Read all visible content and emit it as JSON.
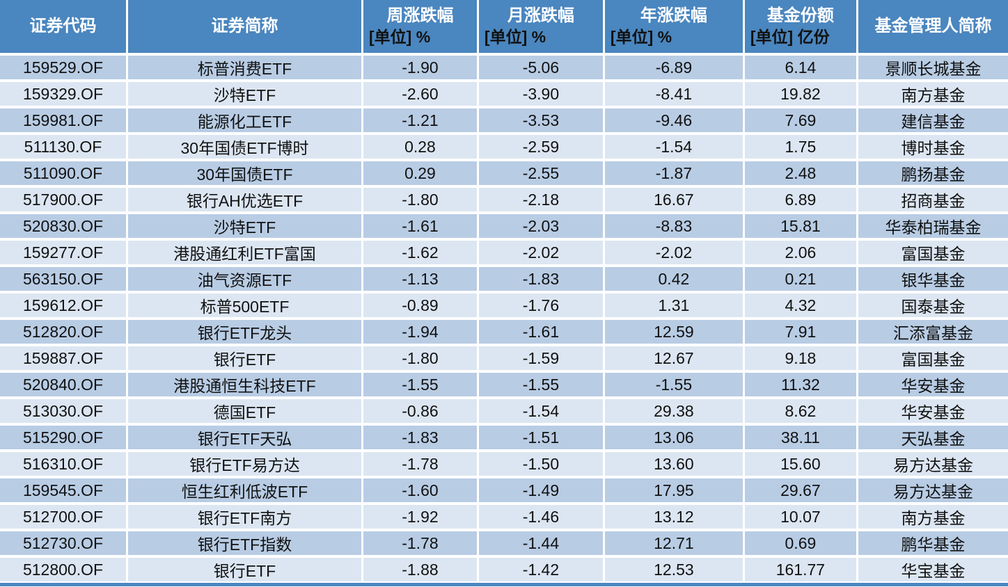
{
  "colors": {
    "header_bg": "#4a86bf",
    "row_odd": "#b8cce4",
    "row_even": "#dce6f2",
    "cell_text": "#111111",
    "header_text": "#ffffff",
    "unit_text": "#111111",
    "grid_line": "#ffffff"
  },
  "chart_data": {
    "type": "table",
    "title": "",
    "columns": [
      {
        "key": "code",
        "label": "证券代码",
        "unit": ""
      },
      {
        "key": "name",
        "label": "证券简称",
        "unit": ""
      },
      {
        "key": "week_change",
        "label": "周涨跌幅",
        "unit": "[单位] %"
      },
      {
        "key": "month_change",
        "label": "月涨跌幅",
        "unit": "[单位] %"
      },
      {
        "key": "year_change",
        "label": "年涨跌幅",
        "unit": "[单位] %"
      },
      {
        "key": "fund_shares",
        "label": "基金份额",
        "unit": "[单位] 亿份"
      },
      {
        "key": "manager",
        "label": "基金管理人简称",
        "unit": ""
      }
    ],
    "rows": [
      [
        "159529.OF",
        "标普消费ETF",
        "-1.90",
        "-5.06",
        "-6.89",
        "6.14",
        "景顺长城基金"
      ],
      [
        "159329.OF",
        "沙特ETF",
        "-2.60",
        "-3.90",
        "-8.41",
        "19.82",
        "南方基金"
      ],
      [
        "159981.OF",
        "能源化工ETF",
        "-1.21",
        "-3.53",
        "-9.46",
        "7.69",
        "建信基金"
      ],
      [
        "511130.OF",
        "30年国债ETF博时",
        "0.28",
        "-2.59",
        "-1.54",
        "1.75",
        "博时基金"
      ],
      [
        "511090.OF",
        "30年国债ETF",
        "0.29",
        "-2.55",
        "-1.87",
        "2.48",
        "鹏扬基金"
      ],
      [
        "517900.OF",
        "银行AH优选ETF",
        "-1.80",
        "-2.18",
        "16.67",
        "6.89",
        "招商基金"
      ],
      [
        "520830.OF",
        "沙特ETF",
        "-1.61",
        "-2.03",
        "-8.83",
        "15.81",
        "华泰柏瑞基金"
      ],
      [
        "159277.OF",
        "港股通红利ETF富国",
        "-1.62",
        "-2.02",
        "-2.02",
        "2.06",
        "富国基金"
      ],
      [
        "563150.OF",
        "油气资源ETF",
        "-1.13",
        "-1.83",
        "0.42",
        "0.21",
        "银华基金"
      ],
      [
        "159612.OF",
        "标普500ETF",
        "-0.89",
        "-1.76",
        "1.31",
        "4.32",
        "国泰基金"
      ],
      [
        "512820.OF",
        "银行ETF龙头",
        "-1.94",
        "-1.61",
        "12.59",
        "7.91",
        "汇添富基金"
      ],
      [
        "159887.OF",
        "银行ETF",
        "-1.80",
        "-1.59",
        "12.67",
        "9.18",
        "富国基金"
      ],
      [
        "520840.OF",
        "港股通恒生科技ETF",
        "-1.55",
        "-1.55",
        "-1.55",
        "11.32",
        "华安基金"
      ],
      [
        "513030.OF",
        "德国ETF",
        "-0.86",
        "-1.54",
        "29.38",
        "8.62",
        "华安基金"
      ],
      [
        "515290.OF",
        "银行ETF天弘",
        "-1.83",
        "-1.51",
        "13.06",
        "38.11",
        "天弘基金"
      ],
      [
        "516310.OF",
        "银行ETF易方达",
        "-1.78",
        "-1.50",
        "13.60",
        "15.60",
        "易方达基金"
      ],
      [
        "159545.OF",
        "恒生红利低波ETF",
        "-1.60",
        "-1.49",
        "17.95",
        "29.67",
        "易方达基金"
      ],
      [
        "512700.OF",
        "银行ETF南方",
        "-1.92",
        "-1.46",
        "13.12",
        "10.07",
        "南方基金"
      ],
      [
        "512730.OF",
        "银行ETF指数",
        "-1.78",
        "-1.44",
        "12.71",
        "0.69",
        "鹏华基金"
      ],
      [
        "512800.OF",
        "银行ETF",
        "-1.88",
        "-1.42",
        "12.53",
        "161.77",
        "华宝基金"
      ]
    ]
  }
}
